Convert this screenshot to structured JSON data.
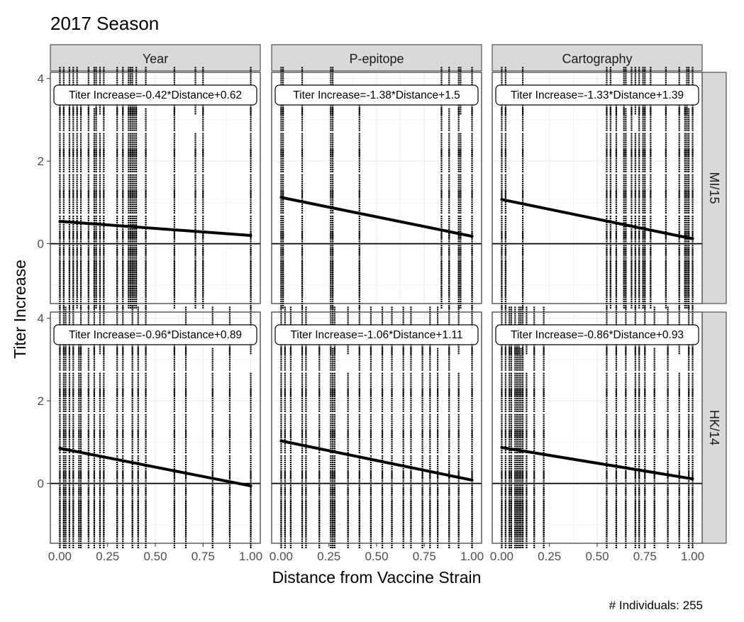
{
  "chart_data": {
    "type": "scatter",
    "title": "2017 Season",
    "xlabel": "Distance from Vaccine Strain",
    "ylabel": "Titer Increase",
    "caption": "# Individuals: 255",
    "xlim": [
      -0.05,
      1.05
    ],
    "ylim": [
      -1.45,
      4.15
    ],
    "x_ticks": [
      0,
      0.25,
      0.5,
      0.75,
      1
    ],
    "x_tick_labels": [
      "0.00",
      "0.25",
      "0.50",
      "0.75",
      "1.00"
    ],
    "y_ticks": [
      0,
      2,
      4
    ],
    "y_tick_labels": [
      "0",
      "2",
      "4"
    ],
    "grid": true,
    "reference_line_y": 0,
    "columns": [
      "Year",
      "P-epitope",
      "Cartography"
    ],
    "rows": [
      "MI/15",
      "HK/14"
    ],
    "panels": [
      {
        "row": "MI/15",
        "column": "Year",
        "label": "Titer Increase=-0.42*Distance+0.62",
        "slope": -0.42,
        "intercept": 0.62,
        "fit_x": [
          0,
          1
        ],
        "fit_y": [
          0.54,
          0.2
        ],
        "x": [
          0,
          0.02,
          0.05,
          0.07,
          0.09,
          0.11,
          0.15,
          0.18,
          0.19,
          0.21,
          0.23,
          0.3,
          0.33,
          0.36,
          0.37,
          0.38,
          0.39,
          0.4,
          0.45,
          0.6,
          0.71,
          0.75,
          1.0
        ]
      },
      {
        "row": "MI/15",
        "column": "P-epitope",
        "label": "Titer Increase=-1.38*Distance+1.5",
        "slope": -1.38,
        "intercept": 1.5,
        "fit_x": [
          0,
          1
        ],
        "fit_y": [
          1.12,
          0.18
        ],
        "x": [
          0,
          0.01,
          0.11,
          0.26,
          0.27,
          0.41,
          0.84,
          0.88,
          0.93,
          0.94,
          1.0
        ]
      },
      {
        "row": "MI/15",
        "column": "Cartography",
        "label": "Titer Increase=-1.33*Distance+1.39",
        "slope": -1.33,
        "intercept": 1.39,
        "fit_x": [
          0,
          1
        ],
        "fit_y": [
          1.07,
          0.12
        ],
        "x": [
          0,
          0.02,
          0.11,
          0.55,
          0.57,
          0.6,
          0.64,
          0.65,
          0.68,
          0.7,
          0.72,
          0.74,
          0.75,
          0.78,
          0.86,
          0.93,
          0.96,
          0.97,
          0.98,
          1.0
        ]
      },
      {
        "row": "HK/14",
        "column": "Year",
        "label": "Titer Increase=-0.96*Distance+0.89",
        "slope": -0.96,
        "intercept": 0.89,
        "fit_x": [
          0,
          1
        ],
        "fit_y": [
          0.85,
          -0.06
        ],
        "x": [
          0,
          0.02,
          0.03,
          0.05,
          0.07,
          0.1,
          0.11,
          0.15,
          0.18,
          0.21,
          0.23,
          0.3,
          0.33,
          0.38,
          0.41,
          0.45,
          0.6,
          0.66,
          0.8,
          0.89,
          1.0
        ]
      },
      {
        "row": "HK/14",
        "column": "P-epitope",
        "label": "Titer Increase=-1.06*Distance+1.11",
        "slope": -1.06,
        "intercept": 1.11,
        "fit_x": [
          0,
          1
        ],
        "fit_y": [
          1.03,
          0.08
        ],
        "x": [
          0,
          0.02,
          0.05,
          0.11,
          0.13,
          0.2,
          0.26,
          0.27,
          0.28,
          0.35,
          0.41,
          0.47,
          0.53,
          0.58,
          0.64,
          0.68,
          0.74,
          0.78,
          0.82,
          0.88,
          0.93,
          1.0
        ]
      },
      {
        "row": "HK/14",
        "column": "Cartography",
        "label": "Titer Increase=-0.86*Distance+0.93",
        "slope": -0.86,
        "intercept": 0.93,
        "fit_x": [
          0,
          1
        ],
        "fit_y": [
          0.87,
          0.11
        ],
        "x": [
          0,
          0.02,
          0.04,
          0.05,
          0.07,
          0.08,
          0.09,
          0.1,
          0.11,
          0.13,
          0.17,
          0.22,
          0.55,
          0.6,
          0.65,
          0.7,
          0.72,
          0.75,
          0.8,
          0.87,
          0.93,
          0.98,
          1.0
        ]
      }
    ],
    "strip_levels": [
      -1.3,
      -1.0,
      -0.7,
      -0.4,
      0,
      0.4,
      1.0,
      1.4,
      2.0,
      2.4,
      3.0,
      3.4,
      4.0
    ],
    "series_color": "#000000"
  },
  "colors": {
    "background": "#ffffff",
    "strip_fill": "#d9d9d9",
    "border": "#333333",
    "gridline": "#ebebeb",
    "text": "#000000",
    "axis_text": "#4d4d4d"
  }
}
